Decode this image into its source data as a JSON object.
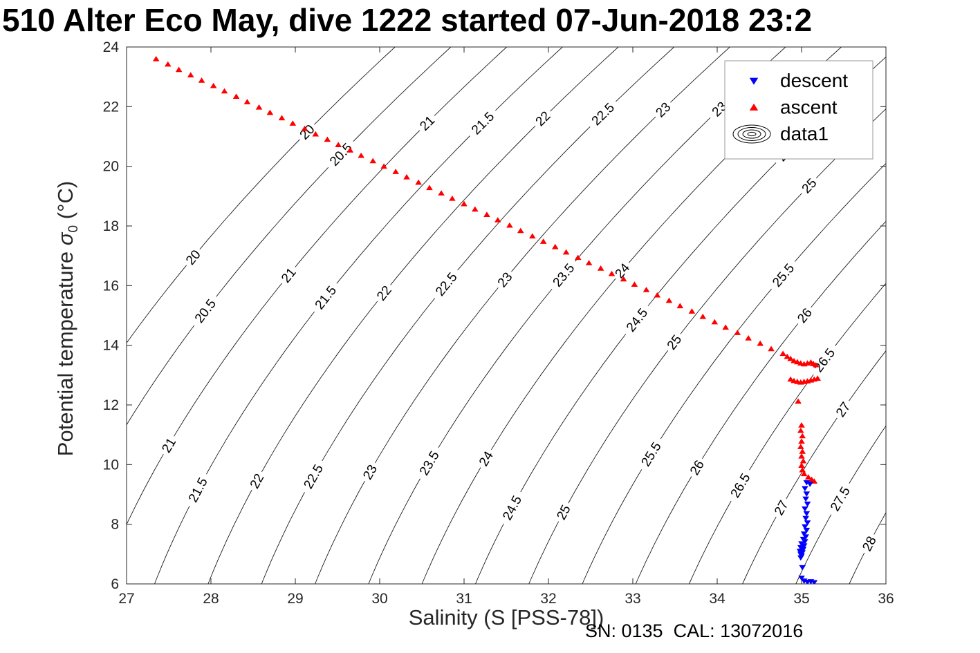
{
  "chart_data": {
    "type": "scatter",
    "title": "510 Alter Eco May, dive 1222 started 07-Jun-2018 23:2",
    "xlabel": "Salinity (S [PSS-78])",
    "ylabel_parts": {
      "prefix": "Potential temperature ",
      "symbol": "σ",
      "sub": "0",
      "suffix": " (°C)"
    },
    "annotation": "SN: 0135  CAL: 13072016",
    "xlim": [
      27,
      36
    ],
    "ylim": [
      6,
      24
    ],
    "xticks": [
      27,
      28,
      29,
      30,
      31,
      32,
      33,
      34,
      35,
      36
    ],
    "yticks": [
      6,
      8,
      10,
      12,
      14,
      16,
      18,
      20,
      22,
      24
    ],
    "grid": false,
    "legend": {
      "position": "northeast",
      "entries": [
        {
          "label": "descent",
          "marker": "triangle-down",
          "color": "#0000FF"
        },
        {
          "label": "ascent",
          "marker": "triangle-up",
          "color": "#FF0000"
        },
        {
          "label": "data1",
          "marker": "contour-rings",
          "color": "#000000"
        }
      ]
    },
    "contours": {
      "variable": "potential density anomaly isopycnals (sigma-0, kg/m3)",
      "levels": [
        20,
        20.5,
        21,
        21.5,
        22,
        22.5,
        23,
        23.5,
        24,
        24.5,
        25,
        25.5,
        26,
        26.5,
        27,
        27.5,
        28
      ],
      "color": "#1a1a1a"
    },
    "series": [
      {
        "name": "ascent",
        "marker": "triangle-up",
        "color": "#FF0000",
        "points": [
          [
            27.35,
            23.6
          ],
          [
            27.49,
            23.42
          ],
          [
            27.62,
            23.24
          ],
          [
            27.76,
            23.06
          ],
          [
            27.89,
            22.88
          ],
          [
            28.03,
            22.7
          ],
          [
            28.16,
            22.52
          ],
          [
            28.3,
            22.34
          ],
          [
            28.43,
            22.16
          ],
          [
            28.57,
            21.98
          ],
          [
            28.7,
            21.8
          ],
          [
            28.84,
            21.62
          ],
          [
            28.97,
            21.44
          ],
          [
            29.11,
            21.26
          ],
          [
            29.24,
            21.08
          ],
          [
            29.38,
            20.9
          ],
          [
            29.51,
            20.72
          ],
          [
            29.65,
            20.54
          ],
          [
            29.78,
            20.36
          ],
          [
            29.92,
            20.18
          ],
          [
            30.05,
            20.0
          ],
          [
            30.19,
            19.82
          ],
          [
            30.32,
            19.64
          ],
          [
            30.46,
            19.46
          ],
          [
            30.59,
            19.28
          ],
          [
            30.73,
            19.1
          ],
          [
            30.86,
            18.92
          ],
          [
            31.0,
            18.74
          ],
          [
            31.13,
            18.56
          ],
          [
            31.27,
            18.38
          ],
          [
            31.4,
            18.2
          ],
          [
            31.54,
            18.02
          ],
          [
            31.67,
            17.84
          ],
          [
            31.81,
            17.66
          ],
          [
            31.94,
            17.48
          ],
          [
            32.08,
            17.3
          ],
          [
            32.21,
            17.12
          ],
          [
            32.35,
            16.94
          ],
          [
            32.48,
            16.76
          ],
          [
            32.62,
            16.58
          ],
          [
            32.75,
            16.4
          ],
          [
            32.89,
            16.22
          ],
          [
            33.02,
            16.04
          ],
          [
            33.16,
            15.86
          ],
          [
            33.29,
            15.68
          ],
          [
            33.43,
            15.5
          ],
          [
            33.56,
            15.32
          ],
          [
            33.7,
            15.14
          ],
          [
            33.83,
            14.96
          ],
          [
            33.97,
            14.78
          ],
          [
            34.1,
            14.6
          ],
          [
            34.24,
            14.42
          ],
          [
            34.37,
            14.24
          ],
          [
            34.51,
            14.06
          ],
          [
            34.64,
            13.88
          ],
          [
            34.78,
            13.72
          ],
          [
            34.83,
            13.62
          ],
          [
            34.87,
            13.55
          ],
          [
            34.91,
            13.48
          ],
          [
            34.95,
            13.44
          ],
          [
            34.99,
            13.4
          ],
          [
            35.03,
            13.37
          ],
          [
            35.07,
            13.4
          ],
          [
            35.11,
            13.43
          ],
          [
            35.14,
            13.38
          ],
          [
            35.17,
            13.34
          ],
          [
            34.87,
            12.86
          ],
          [
            34.91,
            12.81
          ],
          [
            34.95,
            12.78
          ],
          [
            34.99,
            12.76
          ],
          [
            35.03,
            12.78
          ],
          [
            35.07,
            12.8
          ],
          [
            35.11,
            12.83
          ],
          [
            35.15,
            12.86
          ],
          [
            35.19,
            12.89
          ],
          [
            34.96,
            12.12
          ],
          [
            35.0,
            11.32
          ],
          [
            34.99,
            11.14
          ],
          [
            35.01,
            10.96
          ],
          [
            35.0,
            10.78
          ],
          [
            34.99,
            10.6
          ],
          [
            35.01,
            10.44
          ],
          [
            35.0,
            10.28
          ],
          [
            35.02,
            10.12
          ],
          [
            35.0,
            9.97
          ],
          [
            35.01,
            9.82
          ],
          [
            35.03,
            9.69
          ],
          [
            35.08,
            9.58
          ],
          [
            35.12,
            9.5
          ],
          [
            35.15,
            9.44
          ]
        ]
      },
      {
        "name": "descent",
        "marker": "triangle-down",
        "color": "#0000FF",
        "points": [
          [
            35.06,
            9.4
          ],
          [
            35.1,
            9.35
          ],
          [
            35.04,
            9.2
          ],
          [
            35.06,
            9.02
          ],
          [
            35.05,
            8.85
          ],
          [
            35.07,
            8.68
          ],
          [
            35.04,
            8.52
          ],
          [
            35.06,
            8.36
          ],
          [
            35.05,
            8.2
          ],
          [
            35.07,
            8.05
          ],
          [
            35.04,
            7.92
          ],
          [
            35.06,
            7.8
          ],
          [
            35.03,
            7.68
          ],
          [
            35.05,
            7.58
          ],
          [
            35.02,
            7.5
          ],
          [
            35.04,
            7.42
          ],
          [
            35.0,
            7.35
          ],
          [
            35.03,
            7.28
          ],
          [
            34.99,
            7.22
          ],
          [
            35.02,
            7.16
          ],
          [
            34.98,
            7.1
          ],
          [
            35.01,
            7.05
          ],
          [
            34.99,
            7.0
          ],
          [
            35.0,
            6.94
          ],
          [
            34.99,
            6.88
          ],
          [
            35.01,
            6.55
          ],
          [
            35.0,
            6.2
          ],
          [
            35.03,
            6.1
          ],
          [
            35.07,
            6.06
          ],
          [
            35.11,
            6.08
          ],
          [
            35.15,
            6.05
          ]
        ]
      }
    ]
  }
}
